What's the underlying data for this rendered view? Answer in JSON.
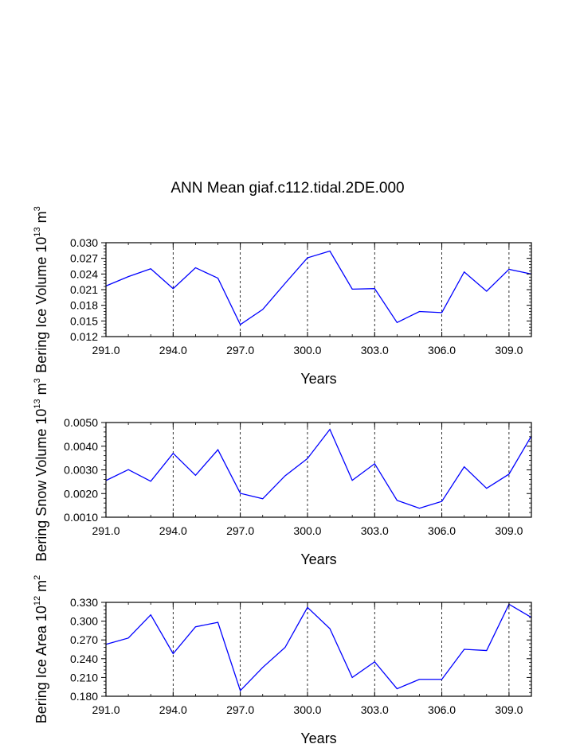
{
  "title": "ANN Mean giaf.c112.tidal.2DE.000",
  "line_color": "#0000ff",
  "chart_data": [
    {
      "type": "line",
      "title": "ANN Mean giaf.c112.tidal.2DE.000",
      "xlabel": "Years",
      "ylabel": {
        "base": "Bering Ice Volume 10",
        "exp": "13",
        "unit": " m",
        "unit_exp": "3"
      },
      "x": [
        291,
        292,
        293,
        294,
        295,
        296,
        297,
        298,
        299,
        300,
        301,
        302,
        303,
        304,
        305,
        306,
        307,
        308,
        309,
        310
      ],
      "y": [
        0.0217,
        0.0235,
        0.025,
        0.0212,
        0.0252,
        0.0232,
        0.0143,
        0.0172,
        0.0222,
        0.0271,
        0.0284,
        0.0211,
        0.0212,
        0.0147,
        0.0168,
        0.0166,
        0.0244,
        0.0207,
        0.0249,
        0.024
      ],
      "xlim": [
        291,
        310
      ],
      "ylim": [
        0.012,
        0.03
      ],
      "xticks": [
        "291.0",
        "294.0",
        "297.0",
        "300.0",
        "303.0",
        "306.0",
        "309.0"
      ],
      "xtick_values": [
        291,
        294,
        297,
        300,
        303,
        306,
        309
      ],
      "yticks": [
        "0.012",
        "0.015",
        "0.018",
        "0.021",
        "0.024",
        "0.027",
        "0.030"
      ],
      "ytick_values": [
        0.012,
        0.015,
        0.018,
        0.021,
        0.024,
        0.027,
        0.03
      ],
      "grid": "vertical dashed at major x ticks"
    },
    {
      "type": "line",
      "xlabel": "Years",
      "ylabel": {
        "base": "Bering Snow Volume 10",
        "exp": "13",
        "unit": " m",
        "unit_exp": "3"
      },
      "x": [
        291,
        292,
        293,
        294,
        295,
        296,
        297,
        298,
        299,
        300,
        301,
        302,
        303,
        304,
        305,
        306,
        307,
        308,
        309,
        310
      ],
      "y": [
        0.00255,
        0.00301,
        0.00252,
        0.0037,
        0.00277,
        0.00385,
        0.00201,
        0.00178,
        0.00275,
        0.00348,
        0.00471,
        0.00256,
        0.00326,
        0.00171,
        0.00138,
        0.00167,
        0.00313,
        0.00222,
        0.00282,
        0.00443
      ],
      "xlim": [
        291,
        310
      ],
      "ylim": [
        0.001,
        0.005
      ],
      "xticks": [
        "291.0",
        "294.0",
        "297.0",
        "300.0",
        "303.0",
        "306.0",
        "309.0"
      ],
      "xtick_values": [
        291,
        294,
        297,
        300,
        303,
        306,
        309
      ],
      "yticks": [
        "0.0010",
        "0.0020",
        "0.0030",
        "0.0040",
        "0.0050"
      ],
      "ytick_values": [
        0.001,
        0.002,
        0.003,
        0.004,
        0.005
      ],
      "grid": "vertical dashed at major x ticks"
    },
    {
      "type": "line",
      "xlabel": "Years",
      "ylabel": {
        "base": "Bering Ice Area 10",
        "exp": "12",
        "unit": " m",
        "unit_exp": "2"
      },
      "x": [
        291,
        292,
        293,
        294,
        295,
        296,
        297,
        298,
        299,
        300,
        301,
        302,
        303,
        304,
        305,
        306,
        307,
        308,
        309,
        310
      ],
      "y": [
        0.263,
        0.273,
        0.31,
        0.248,
        0.291,
        0.298,
        0.189,
        0.226,
        0.258,
        0.322,
        0.288,
        0.21,
        0.235,
        0.192,
        0.207,
        0.207,
        0.255,
        0.253,
        0.327,
        0.306
      ],
      "xlim": [
        291,
        310
      ],
      "ylim": [
        0.18,
        0.33
      ],
      "xticks": [
        "291.0",
        "294.0",
        "297.0",
        "300.0",
        "303.0",
        "306.0",
        "309.0"
      ],
      "xtick_values": [
        291,
        294,
        297,
        300,
        303,
        306,
        309
      ],
      "yticks": [
        "0.180",
        "0.210",
        "0.240",
        "0.270",
        "0.300",
        "0.330"
      ],
      "ytick_values": [
        0.18,
        0.21,
        0.24,
        0.27,
        0.3,
        0.33
      ],
      "grid": "vertical dashed at major x ticks"
    }
  ]
}
